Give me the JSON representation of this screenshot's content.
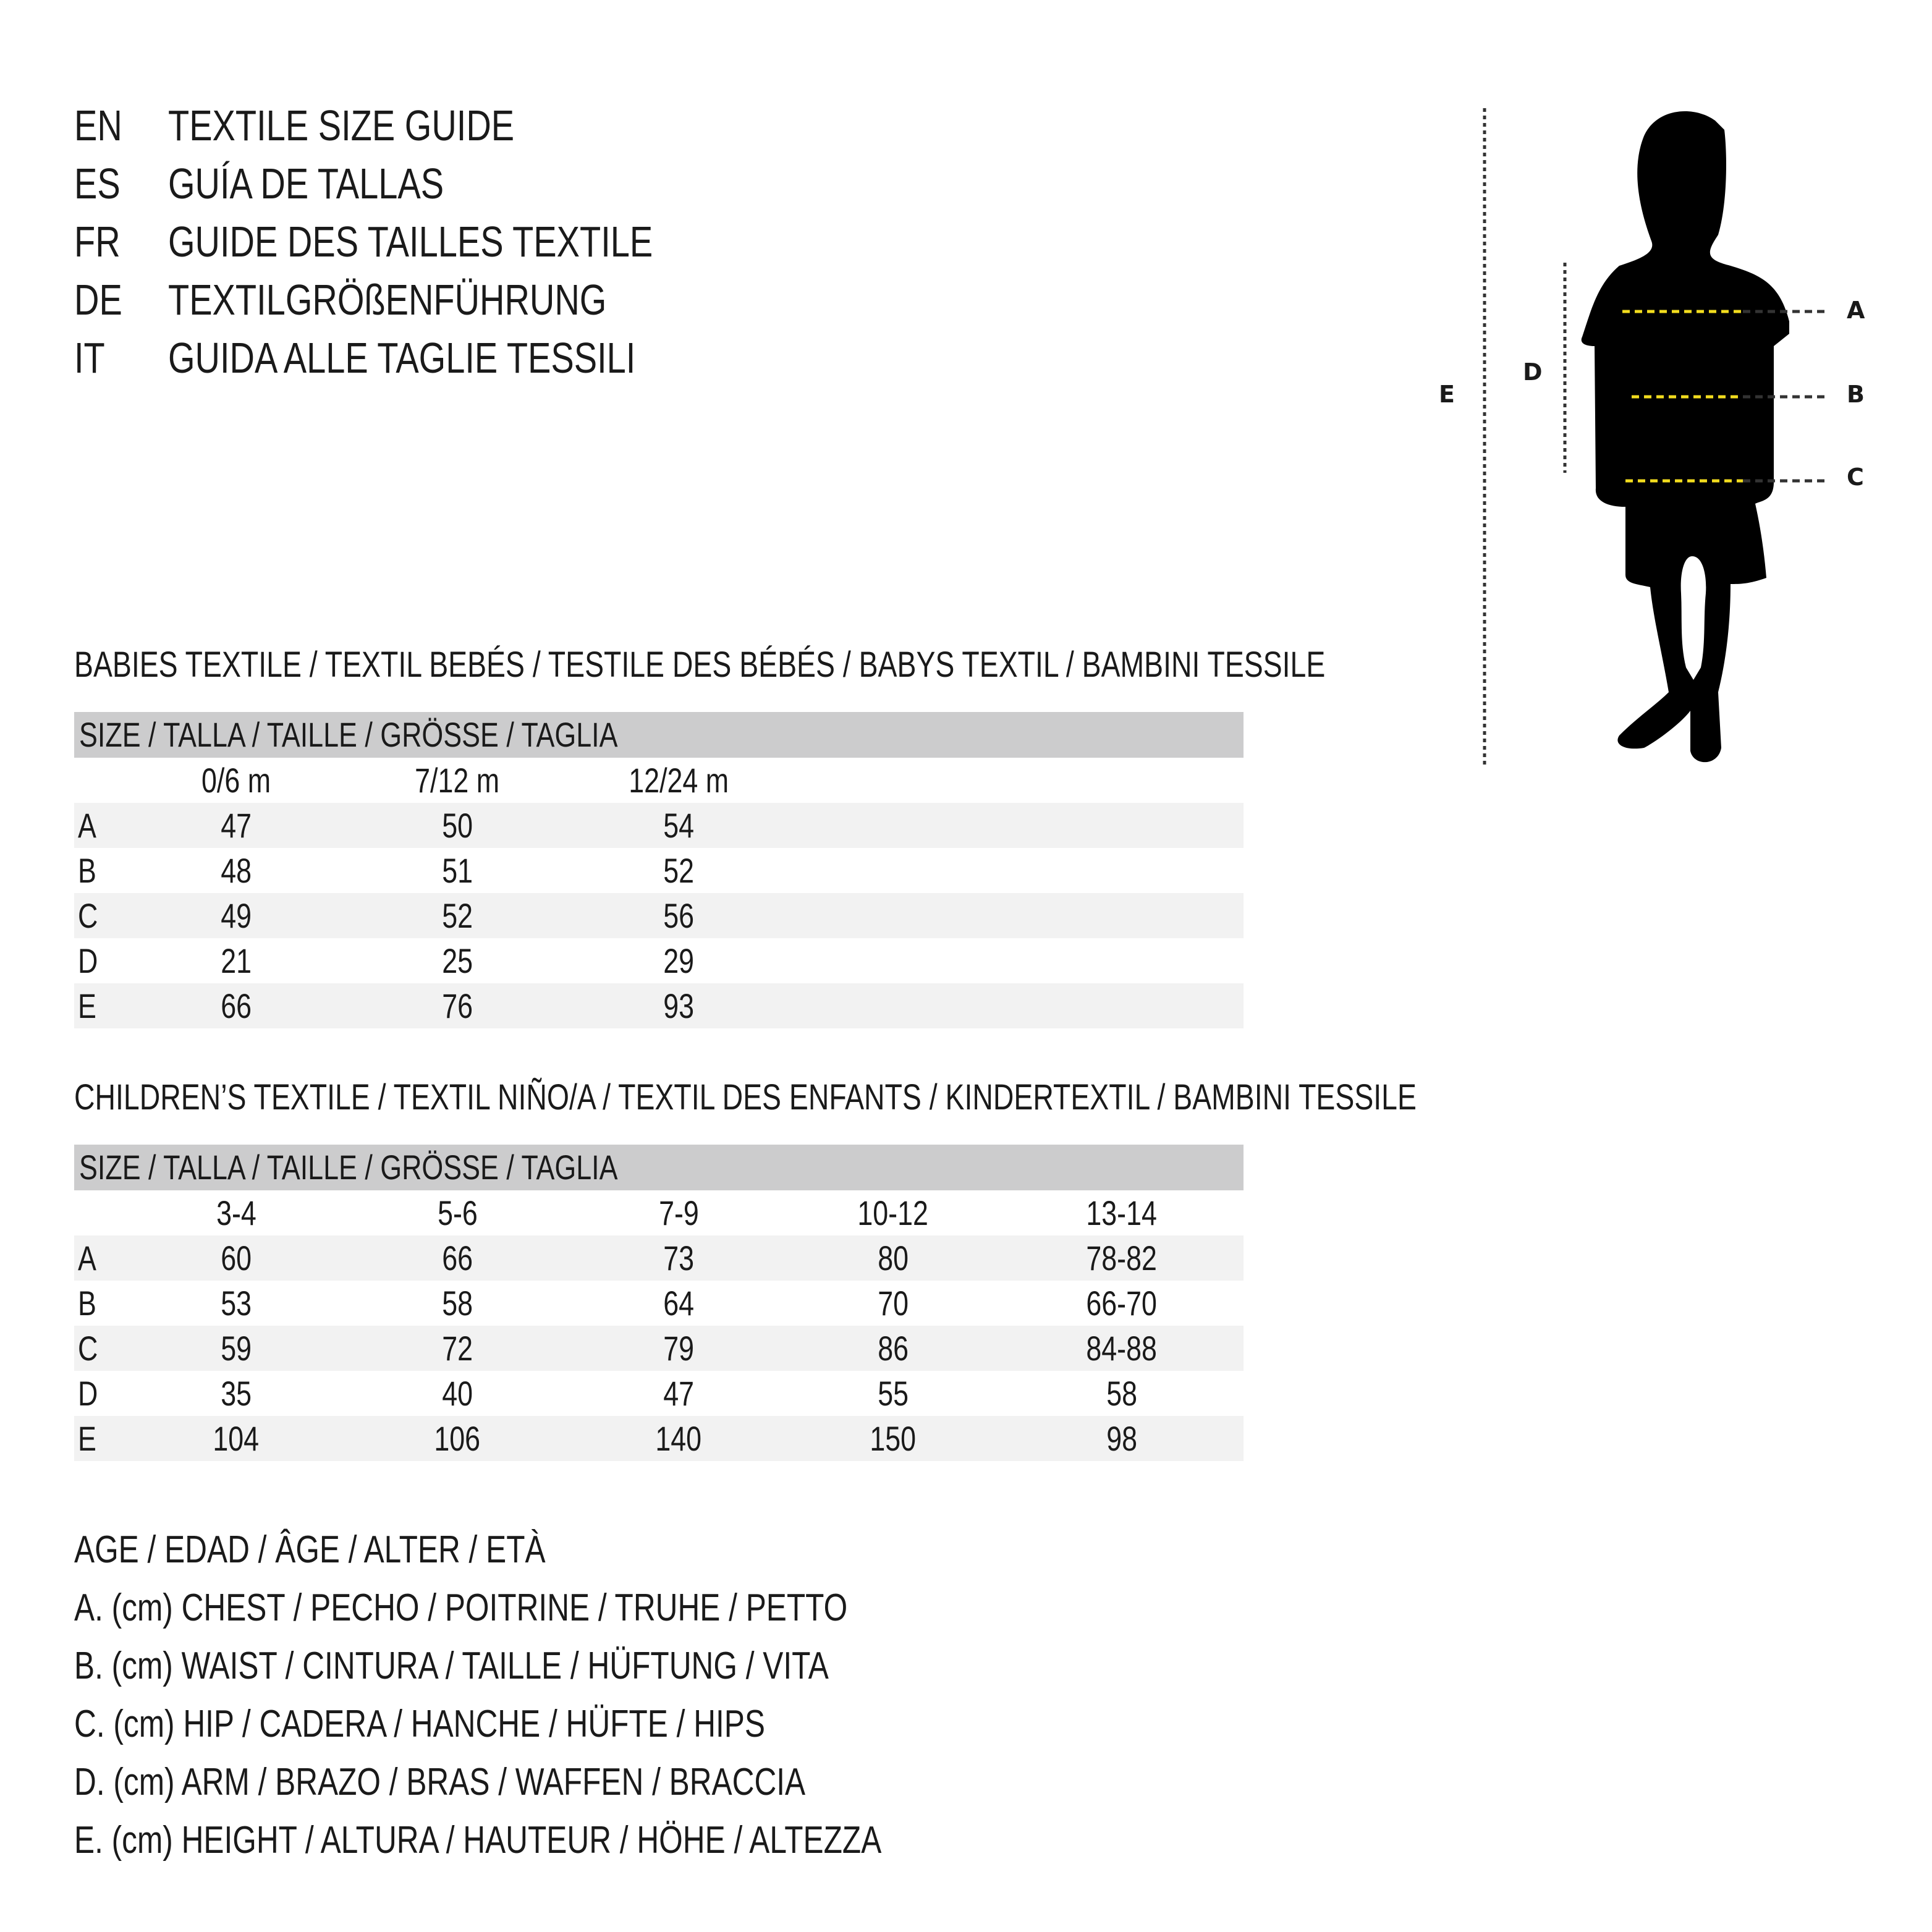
{
  "titles": [
    {
      "code": "EN",
      "text": "TEXTILE SIZE GUIDE"
    },
    {
      "code": "ES",
      "text": "GUÍA DE TALLAS"
    },
    {
      "code": "FR",
      "text": "GUIDE DES TAILLES TEXTILE"
    },
    {
      "code": "DE",
      "text": "TEXTILGRÖßENFÜHRUNG"
    },
    {
      "code": "IT",
      "text": "GUIDA ALLE TAGLIE TESSILI"
    }
  ],
  "babies": {
    "heading": "BABIES TEXTILE / TEXTIL BEBÉS / TESTILE DES BÉBÉS / BABYS TEXTIL / BAMBINI TESSILE",
    "size_header": "SIZE / TALLA / TAILLE / GRÖSSE / TAGLIA",
    "columns": [
      "0/6 m",
      "7/12 m",
      "12/24 m"
    ],
    "rows": [
      {
        "label": "A",
        "values": [
          "47",
          "50",
          "54"
        ]
      },
      {
        "label": "B",
        "values": [
          "48",
          "51",
          "52"
        ]
      },
      {
        "label": "C",
        "values": [
          "49",
          "52",
          "56"
        ]
      },
      {
        "label": "D",
        "values": [
          "21",
          "25",
          "29"
        ]
      },
      {
        "label": "E",
        "values": [
          "66",
          "76",
          "93"
        ]
      }
    ]
  },
  "children": {
    "heading": "CHILDREN’S TEXTILE / TEXTIL NIÑO/A / TEXTIL DES ENFANTS / KINDERTEXTIL / BAMBINI TESSILE",
    "size_header": "SIZE / TALLA / TAILLE / GRÖSSE / TAGLIA",
    "columns": [
      "3-4",
      "5-6",
      "7-9",
      "10-12",
      "13-14"
    ],
    "rows": [
      {
        "label": "A",
        "values": [
          "60",
          "66",
          "73",
          "80",
          "78-82"
        ]
      },
      {
        "label": "B",
        "values": [
          "53",
          "58",
          "64",
          "70",
          "66-70"
        ]
      },
      {
        "label": "C",
        "values": [
          "59",
          "72",
          "79",
          "86",
          "84-88"
        ]
      },
      {
        "label": "D",
        "values": [
          "35",
          "40",
          "47",
          "55",
          "58"
        ]
      },
      {
        "label": "E",
        "values": [
          "104",
          "106",
          "140",
          "150",
          "98"
        ]
      }
    ]
  },
  "legend": [
    "AGE / EDAD / ÂGE / ALTER / ETÀ",
    "A. (cm) CHEST / PECHO / POITRINE / TRUHE / PETTO",
    "B. (cm) WAIST / CINTURA / TAILLE / HÜFTUNG / VITA",
    "C. (cm) HIP / CADERA / HANCHE / HÜFTE / HIPS",
    "D. (cm) ARM / BRAZO / BRAS / WAFFEN / BRACCIA",
    "E. (cm) HEIGHT / ALTURA / HAUTEUR / HÖHE / ALTEZZA"
  ],
  "figure": {
    "labels": {
      "a": "A",
      "b": "B",
      "c": "C",
      "d": "D",
      "e": "E"
    },
    "colors": {
      "silhouette": "#000000",
      "measure_line": "#f2dc1e",
      "guide_line": "#333333"
    }
  }
}
